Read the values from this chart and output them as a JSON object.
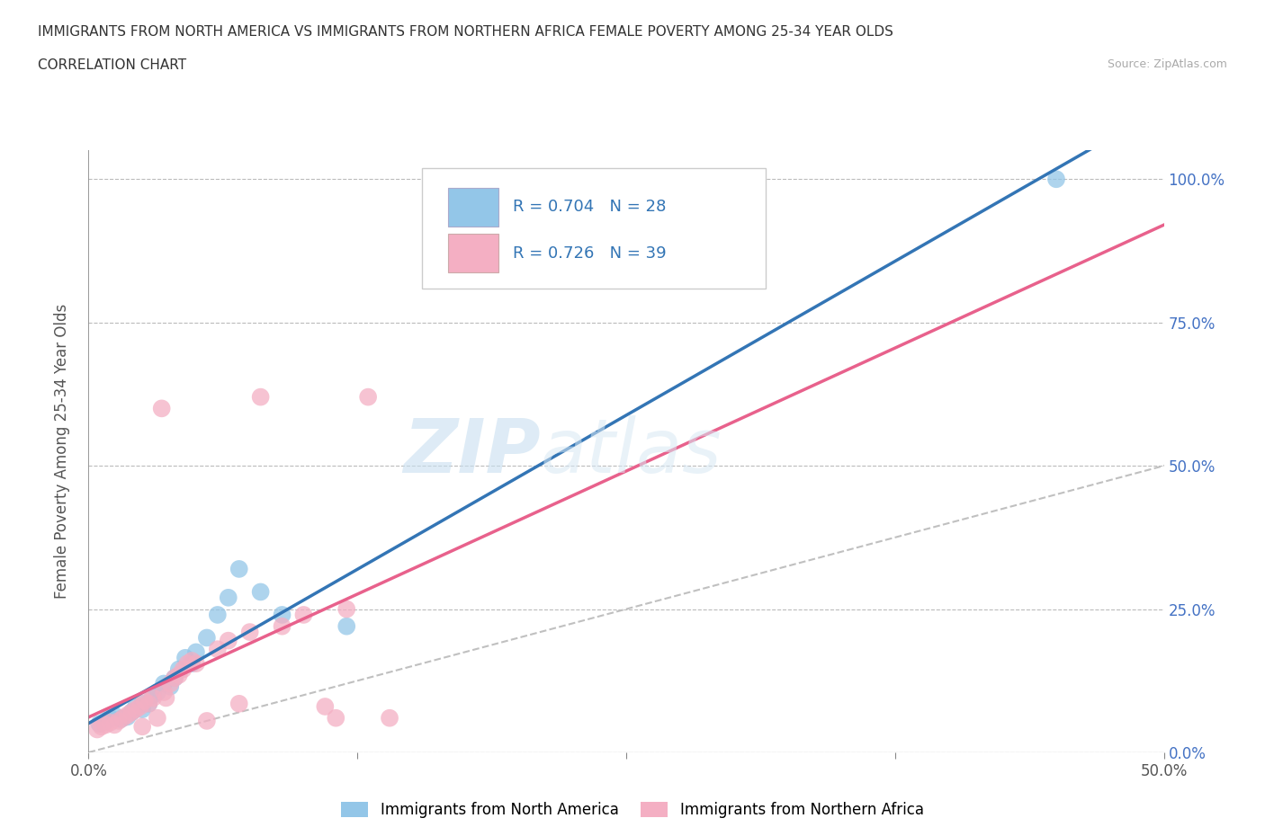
{
  "title_line1": "IMMIGRANTS FROM NORTH AMERICA VS IMMIGRANTS FROM NORTHERN AFRICA FEMALE POVERTY AMONG 25-34 YEAR OLDS",
  "title_line2": "CORRELATION CHART",
  "source": "Source: ZipAtlas.com",
  "ylabel": "Female Poverty Among 25-34 Year Olds",
  "xlim": [
    0.0,
    0.5
  ],
  "ylim": [
    0.0,
    1.05
  ],
  "ytick_labels": [
    "0.0%",
    "25.0%",
    "50.0%",
    "75.0%",
    "100.0%"
  ],
  "ytick_values": [
    0.0,
    0.25,
    0.5,
    0.75,
    1.0
  ],
  "xtick_labels": [
    "0.0%",
    "",
    "",
    "",
    "50.0%"
  ],
  "xtick_values": [
    0.0,
    0.125,
    0.25,
    0.375,
    0.5
  ],
  "watermark_zip": "ZIP",
  "watermark_atlas": "atlas",
  "legend_r1": "R = 0.704",
  "legend_n1": "N = 28",
  "legend_r2": "R = 0.726",
  "legend_n2": "N = 39",
  "color_blue": "#93c6e8",
  "color_pink": "#f4afc3",
  "color_blue_line": "#3375b5",
  "color_pink_line": "#e8618c",
  "color_diag": "#c0c0c0",
  "north_america_x": [
    0.005,
    0.008,
    0.01,
    0.012,
    0.015,
    0.018,
    0.02,
    0.022,
    0.025,
    0.025,
    0.028,
    0.03,
    0.032,
    0.035,
    0.038,
    0.04,
    0.042,
    0.045,
    0.048,
    0.05,
    0.055,
    0.06,
    0.065,
    0.07,
    0.08,
    0.09,
    0.12,
    0.45
  ],
  "north_america_y": [
    0.05,
    0.055,
    0.06,
    0.065,
    0.058,
    0.062,
    0.07,
    0.08,
    0.075,
    0.085,
    0.085,
    0.1,
    0.105,
    0.12,
    0.115,
    0.13,
    0.145,
    0.165,
    0.155,
    0.175,
    0.2,
    0.24,
    0.27,
    0.32,
    0.28,
    0.24,
    0.22,
    1.0
  ],
  "north_africa_x": [
    0.004,
    0.006,
    0.008,
    0.01,
    0.012,
    0.014,
    0.016,
    0.018,
    0.02,
    0.022,
    0.024,
    0.025,
    0.026,
    0.028,
    0.03,
    0.032,
    0.034,
    0.035,
    0.036,
    0.038,
    0.04,
    0.042,
    0.044,
    0.046,
    0.048,
    0.05,
    0.055,
    0.06,
    0.065,
    0.07,
    0.075,
    0.08,
    0.09,
    0.1,
    0.11,
    0.115,
    0.12,
    0.13,
    0.14
  ],
  "north_africa_y": [
    0.04,
    0.045,
    0.048,
    0.052,
    0.048,
    0.055,
    0.06,
    0.065,
    0.07,
    0.075,
    0.08,
    0.045,
    0.09,
    0.085,
    0.095,
    0.06,
    0.6,
    0.105,
    0.095,
    0.12,
    0.13,
    0.135,
    0.145,
    0.155,
    0.16,
    0.155,
    0.055,
    0.18,
    0.195,
    0.085,
    0.21,
    0.62,
    0.22,
    0.24,
    0.08,
    0.06,
    0.25,
    0.62,
    0.06
  ]
}
